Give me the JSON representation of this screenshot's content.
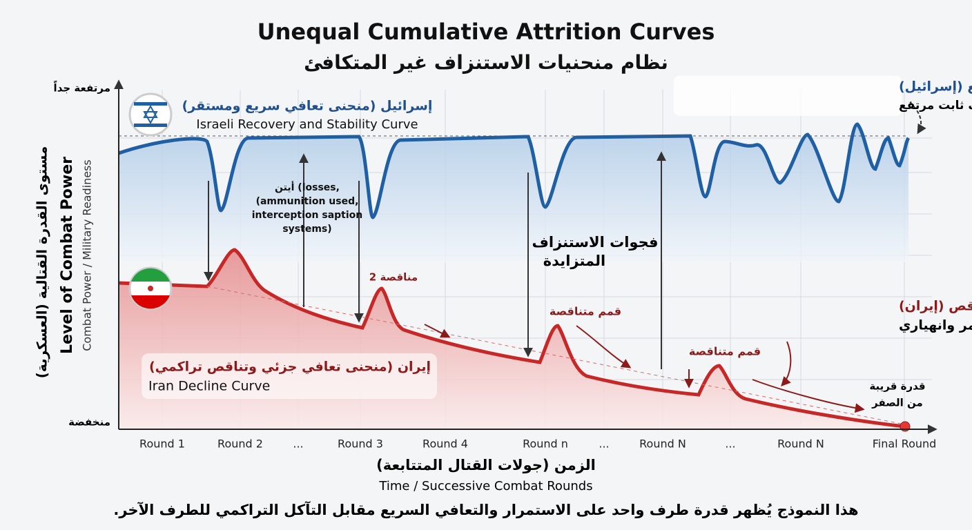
{
  "title": "Unequal Cumulative Attrition Curves",
  "subtitle": "نظام منحنيات الاستنزاف غير المتكافئ",
  "y_axis": {
    "top": "مرتفعة جداً",
    "bottom": "منخفضة",
    "label_ar": "مستوى القدرة القتالية (العسكرية)",
    "label_en": "Level of Combat Power",
    "sublabel": "Combat Power / Military Readiness"
  },
  "israel": {
    "label_ar": "إسرائيل (منحنى تعافي سريع ومستقر)",
    "label_en": "Israeli Recovery and Stability Curve"
  },
  "iran": {
    "label_ar": "إيران (منحنى تعافي جزئي وتناقص تراكمي)",
    "label_en": "Iran Decline Curve"
  },
  "losses_note": [
    "أيتن (losses,",
    "(ammunition used,",
    "interception saption",
    "systems)"
  ],
  "gaps_note": [
    "فجوات الاستنزاف",
    "المتزايدة"
  ],
  "israel_note": [
    "التعافي السريع والمرتفع (إسرائيل)",
    "تذبذب حول سقف ثابت مرتفع"
  ],
  "iran_note": [
    "التعافي الجزئي والمتناقص (إيران)",
    "انخفاض مستمر وانهياري"
  ],
  "annotations": [
    "2 مناقصة",
    "قمم متناقصة",
    "قمم متناقصة"
  ],
  "near_zero": [
    "قدرة قريبة",
    "من الصفر"
  ],
  "x_labels": [
    "Round 1",
    "Round 2",
    "...",
    "Round 3",
    "Round 4",
    "Round n",
    "...",
    "Round N",
    "...",
    "Round N",
    "Final Round"
  ],
  "x_axis": {
    "label_ar": "الزمن (جولات القتال المتتابعة)",
    "label_en": "Time / Successive Combat Rounds"
  },
  "footer": "هذا النموذج يُظهر قدرة طرف واحد على الاستمرار والتعافي السريع مقابل التآكل التراكمي للطرف الآخر."
}
